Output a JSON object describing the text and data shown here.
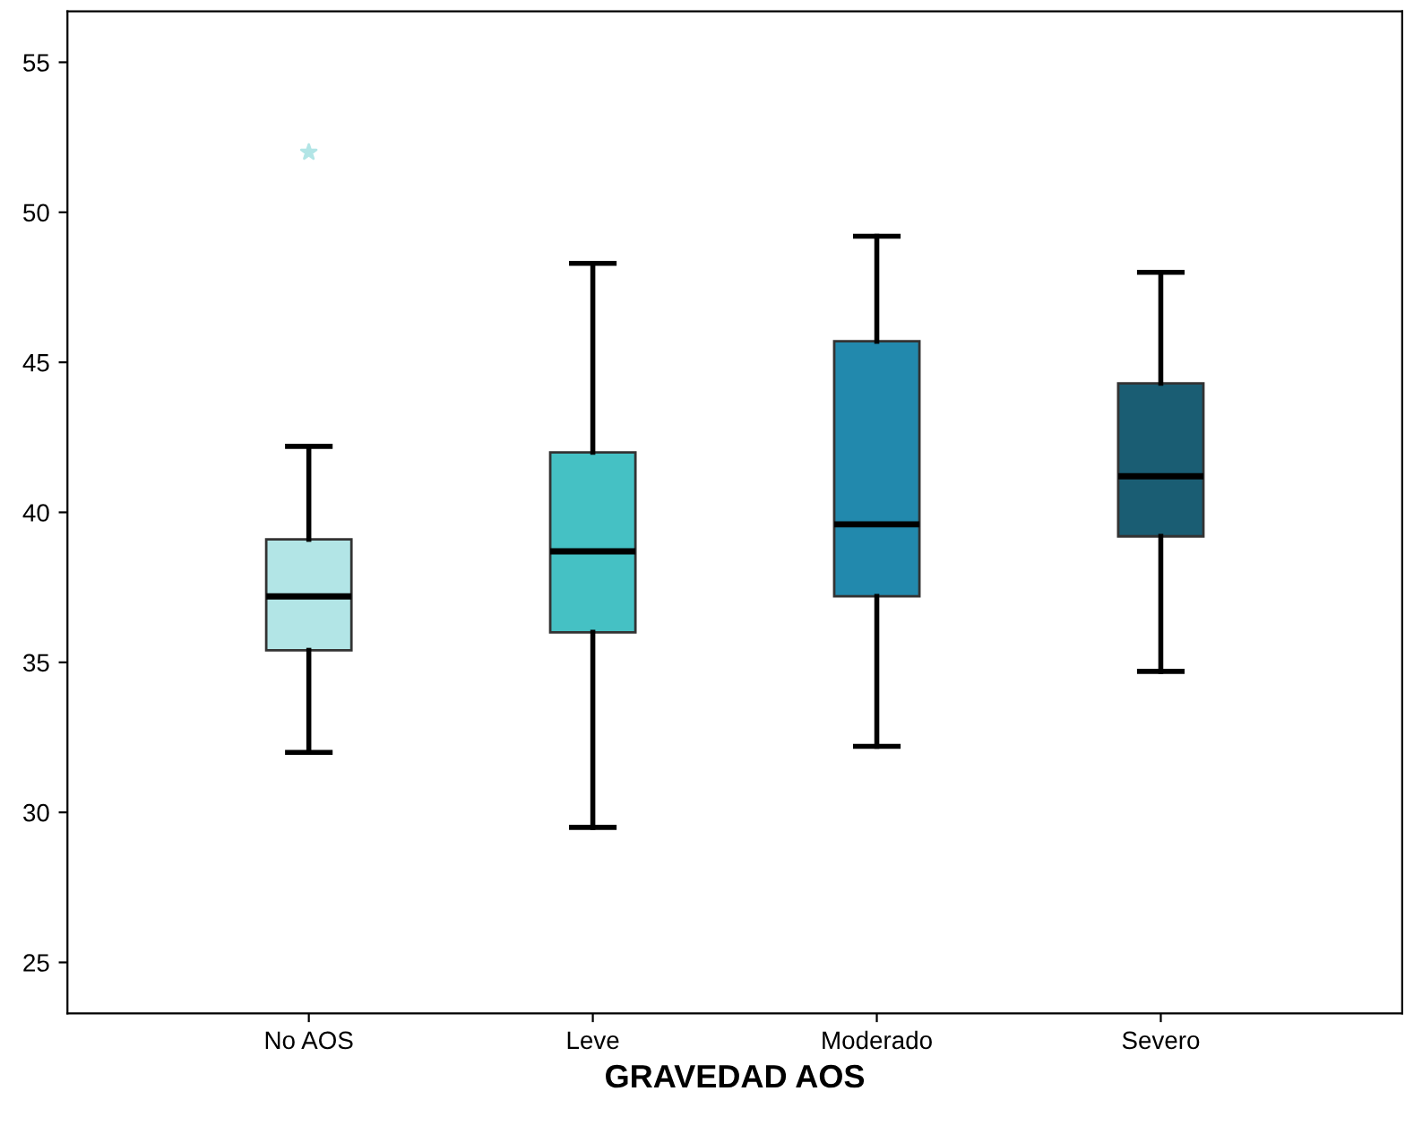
{
  "chart_data": {
    "type": "box",
    "xlabel": "GRAVEDAD AOS",
    "categories": [
      "No AOS",
      "Leve",
      "Moderado",
      "Severo"
    ],
    "colors": [
      "#b2e5e6",
      "#45c1c4",
      "#2289ad",
      "#1a5d73"
    ],
    "boxes": [
      {
        "low": 32.0,
        "q1": 35.4,
        "median": 37.2,
        "q3": 39.1,
        "high": 42.2,
        "outliers": [
          52.0
        ]
      },
      {
        "low": 29.5,
        "q1": 36.0,
        "median": 38.7,
        "q3": 42.0,
        "high": 48.3
      },
      {
        "low": 32.2,
        "q1": 37.2,
        "median": 39.6,
        "q3": 45.7,
        "high": 49.2
      },
      {
        "low": 34.7,
        "q1": 39.2,
        "median": 41.2,
        "q3": 44.3,
        "high": 48.0
      }
    ],
    "ylim": [
      23.3,
      56.7
    ],
    "yticks": [
      25,
      30,
      35,
      40,
      45,
      50,
      55
    ],
    "grid": false,
    "marker": "star"
  }
}
